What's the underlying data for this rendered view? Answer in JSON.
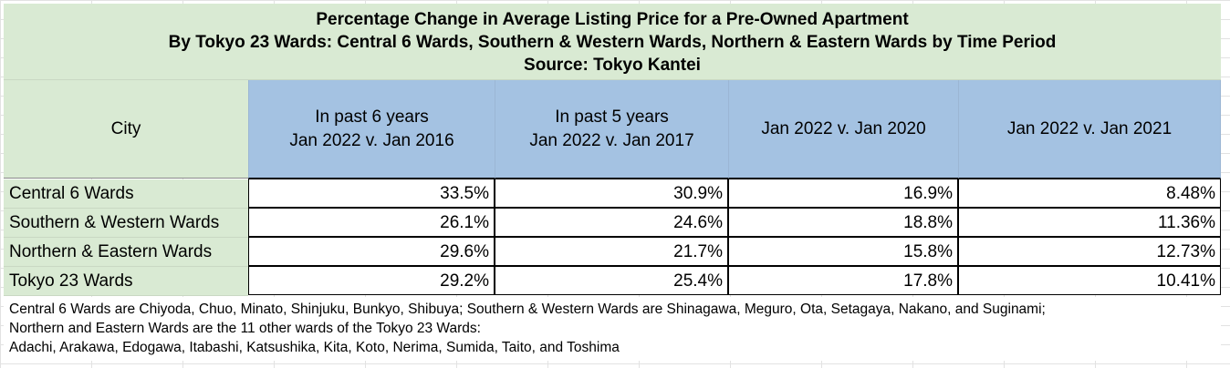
{
  "title": {
    "line1": "Percentage Change in Average Listing Price for a Pre-Owned Apartment",
    "line2": "By Tokyo 23 Wards: Central 6 Wards, Southern & Western Wards, Northern & Eastern Wards by Time Period",
    "line3": "Source: Tokyo Kantei"
  },
  "header": {
    "city": "City",
    "col1_line1": "In past 6 years",
    "col1_line2": "Jan 2022 v. Jan 2016",
    "col2_line1": "In past 5 years",
    "col2_line2": "Jan 2022 v. Jan 2017",
    "col3": "Jan 2022 v. Jan 2020",
    "col4": "Jan 2022 v. Jan 2021"
  },
  "rows": [
    {
      "city": "Central 6 Wards",
      "v1": "33.5%",
      "v2": "30.9%",
      "v3": "16.9%",
      "v4": "8.48%"
    },
    {
      "city": "Southern & Western Wards",
      "v1": "26.1%",
      "v2": "24.6%",
      "v3": "18.8%",
      "v4": "11.36%"
    },
    {
      "city": "Northern & Eastern Wards",
      "v1": "29.6%",
      "v2": "21.7%",
      "v3": "15.8%",
      "v4": "12.73%"
    },
    {
      "city": "Tokyo 23 Wards",
      "v1": "29.2%",
      "v2": "25.4%",
      "v3": "17.8%",
      "v4": "10.41%"
    }
  ],
  "note": {
    "line1": "Central 6 Wards are Chiyoda, Chuo, Minato, Shinjuku, Bunkyo, Shibuya; Southern & Western Wards are Shinagawa, Meguro, Ota, Setagaya, Nakano, and Suginami;",
    "line2": "Northern and Eastern Wards are the 11 other wards of the Tokyo 23 Wards:",
    "line3": "Adachi, Arakawa, Edogawa, Itabashi, Katsushika, Kita, Koto, Nerima, Sumida, Taito, and Toshima"
  },
  "colors": {
    "title_bg": "#d9ead3",
    "header_bg": "#a4c2e2",
    "cell_bg": "#ffffff"
  }
}
